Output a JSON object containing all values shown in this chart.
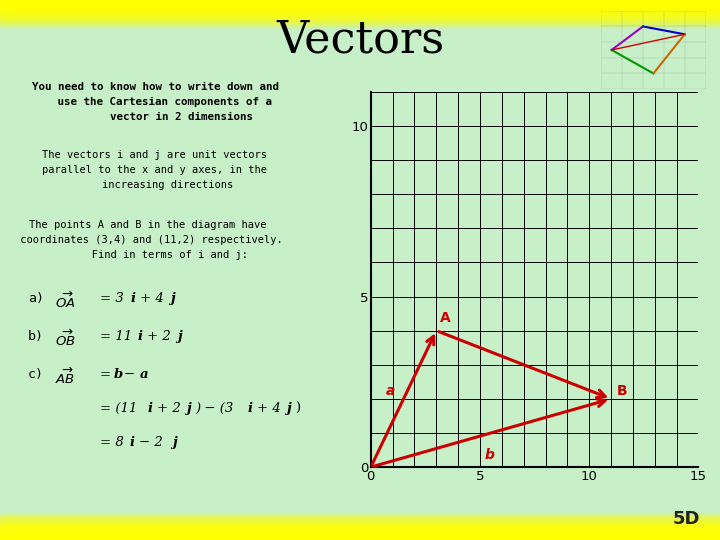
{
  "title": "Vectors",
  "bg_color": "#c8f0c8",
  "title_color": "#000000",
  "title_fontsize": 32,
  "slide_num": "5D",
  "O": [
    0,
    0
  ],
  "A": [
    3,
    4
  ],
  "B": [
    11,
    2
  ],
  "arrow_color": "#cc0000",
  "label_color": "#cc0000",
  "grid_color": "#000000",
  "xlim": [
    0,
    15
  ],
  "ylim": [
    0,
    11
  ],
  "xticks": [
    0,
    5,
    10,
    15
  ],
  "yticks": [
    0,
    5,
    10
  ]
}
